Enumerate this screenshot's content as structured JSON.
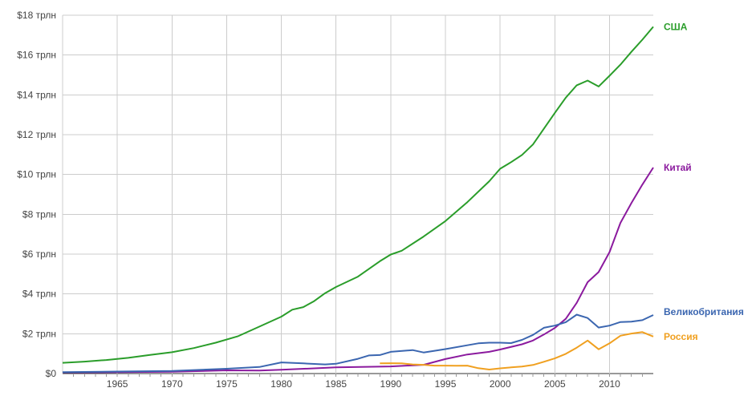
{
  "chart_data": {
    "type": "line",
    "title": "",
    "xlabel": "",
    "ylabel": "",
    "xlim": [
      1960,
      2014
    ],
    "ylim": [
      0,
      18
    ],
    "grid": true,
    "legend": "inline labels at line ends (right)",
    "x_ticks": [
      {
        "value": 1965,
        "label": "1965"
      },
      {
        "value": 1970,
        "label": "1970"
      },
      {
        "value": 1975,
        "label": "1975"
      },
      {
        "value": 1980,
        "label": "1980"
      },
      {
        "value": 1985,
        "label": "1985"
      },
      {
        "value": 1990,
        "label": "1990"
      },
      {
        "value": 1995,
        "label": "1995"
      },
      {
        "value": 2000,
        "label": "2000"
      },
      {
        "value": 2005,
        "label": "2005"
      },
      {
        "value": 2010,
        "label": "2010"
      }
    ],
    "y_ticks": [
      {
        "value": 0,
        "label": "$0"
      },
      {
        "value": 2,
        "label": "$2 трлн"
      },
      {
        "value": 4,
        "label": "$4 трлн"
      },
      {
        "value": 6,
        "label": "$6 трлн"
      },
      {
        "value": 8,
        "label": "$8 трлн"
      },
      {
        "value": 10,
        "label": "$10 трлн"
      },
      {
        "value": 12,
        "label": "$12 трлн"
      },
      {
        "value": 14,
        "label": "$14 трлн"
      },
      {
        "value": 16,
        "label": "$16 трлн"
      },
      {
        "value": 18,
        "label": "$18 трлн"
      }
    ],
    "series": [
      {
        "name": "США",
        "color": "#2a9d2a",
        "x": [
          1960,
          1962,
          1964,
          1966,
          1968,
          1970,
          1972,
          1974,
          1976,
          1978,
          1980,
          1981,
          1982,
          1983,
          1984,
          1985,
          1987,
          1989,
          1990,
          1991,
          1993,
          1995,
          1997,
          1999,
          2000,
          2001,
          2002,
          2003,
          2005,
          2006,
          2007,
          2008,
          2009,
          2010,
          2011,
          2012,
          2013,
          2014
        ],
        "values": [
          0.54,
          0.6,
          0.68,
          0.79,
          0.94,
          1.07,
          1.28,
          1.55,
          1.87,
          2.36,
          2.86,
          3.21,
          3.34,
          3.64,
          4.04,
          4.35,
          4.87,
          5.64,
          5.98,
          6.17,
          6.88,
          7.66,
          8.61,
          9.66,
          10.29,
          10.62,
          10.98,
          11.51,
          13.09,
          13.86,
          14.48,
          14.72,
          14.42,
          14.96,
          15.52,
          16.16,
          16.77,
          17.42
        ]
      },
      {
        "name": "Китай",
        "color": "#8b1a9e",
        "x": [
          1960,
          1965,
          1970,
          1975,
          1978,
          1980,
          1985,
          1990,
          1993,
          1995,
          1997,
          1999,
          2000,
          2002,
          2003,
          2004,
          2005,
          2006,
          2007,
          2008,
          2009,
          2010,
          2011,
          2012,
          2013,
          2014
        ],
        "values": [
          0.06,
          0.07,
          0.09,
          0.16,
          0.15,
          0.19,
          0.31,
          0.36,
          0.44,
          0.73,
          0.96,
          1.09,
          1.21,
          1.47,
          1.66,
          1.96,
          2.29,
          2.75,
          3.55,
          4.59,
          5.1,
          6.1,
          7.57,
          8.56,
          9.49,
          10.35
        ]
      },
      {
        "name": "Великобритания",
        "color": "#3b66b0",
        "x": [
          1960,
          1965,
          1970,
          1975,
          1978,
          1980,
          1982,
          1984,
          1985,
          1987,
          1988,
          1989,
          1990,
          1992,
          1993,
          1995,
          1997,
          1998,
          1999,
          2000,
          2001,
          2002,
          2003,
          2004,
          2005,
          2006,
          2007,
          2008,
          2009,
          2010,
          2011,
          2012,
          2013,
          2014
        ],
        "values": [
          0.07,
          0.1,
          0.13,
          0.24,
          0.33,
          0.56,
          0.51,
          0.46,
          0.49,
          0.74,
          0.91,
          0.93,
          1.09,
          1.18,
          1.06,
          1.23,
          1.42,
          1.52,
          1.55,
          1.55,
          1.53,
          1.69,
          1.94,
          2.3,
          2.41,
          2.58,
          2.96,
          2.79,
          2.31,
          2.41,
          2.59,
          2.61,
          2.68,
          2.94
        ]
      },
      {
        "name": "Россия",
        "color": "#f0a020",
        "x": [
          1989,
          1990,
          1991,
          1992,
          1993,
          1994,
          1995,
          1996,
          1997,
          1998,
          1999,
          2000,
          2001,
          2002,
          2003,
          2004,
          2005,
          2006,
          2007,
          2008,
          2009,
          2010,
          2011,
          2012,
          2013,
          2014
        ],
        "values": [
          0.51,
          0.52,
          0.51,
          0.46,
          0.44,
          0.4,
          0.4,
          0.39,
          0.4,
          0.27,
          0.2,
          0.26,
          0.31,
          0.35,
          0.43,
          0.59,
          0.76,
          0.99,
          1.3,
          1.66,
          1.22,
          1.52,
          1.9,
          2.01,
          2.08,
          1.86
        ]
      }
    ]
  }
}
